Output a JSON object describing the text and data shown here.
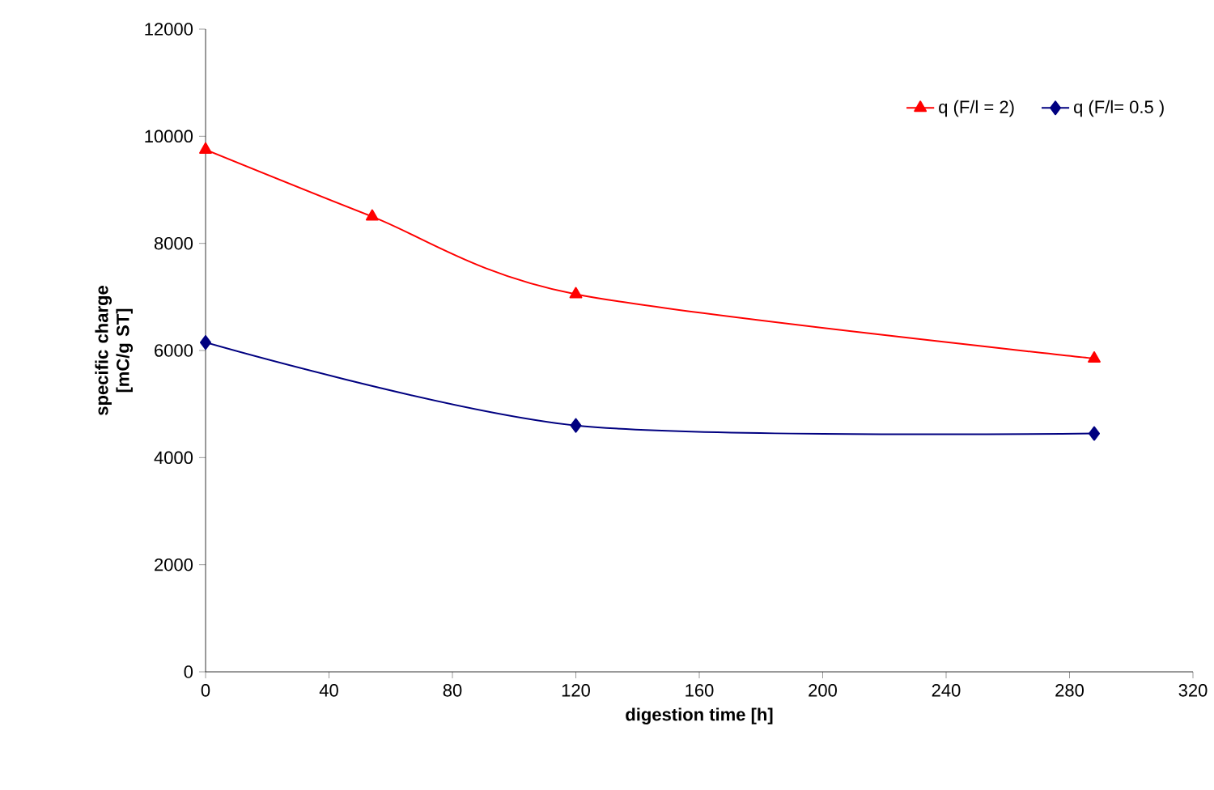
{
  "chart_data": {
    "type": "line",
    "xlabel": "digestion time [h]",
    "ylabel": "specific charge [mC/g ST]",
    "xlim": [
      0,
      320
    ],
    "xticks": [
      0,
      40,
      80,
      120,
      160,
      200,
      240,
      280,
      320
    ],
    "ylim": [
      0,
      12000
    ],
    "yticks": [
      0,
      2000,
      4000,
      6000,
      8000,
      10000,
      12000
    ],
    "legend": "top right",
    "grid": false,
    "series": [
      {
        "name": "q (F/l = 2)",
        "color": "#ff0000",
        "marker": "triangle",
        "x": [
          0,
          54,
          120,
          288
        ],
        "values": [
          9750,
          8500,
          7050,
          5850
        ]
      },
      {
        "name": "q (F/l= 0.5 )",
        "color": "#000080",
        "marker": "diamond",
        "x": [
          0,
          120,
          288
        ],
        "values": [
          6150,
          4600,
          4450
        ]
      }
    ]
  }
}
